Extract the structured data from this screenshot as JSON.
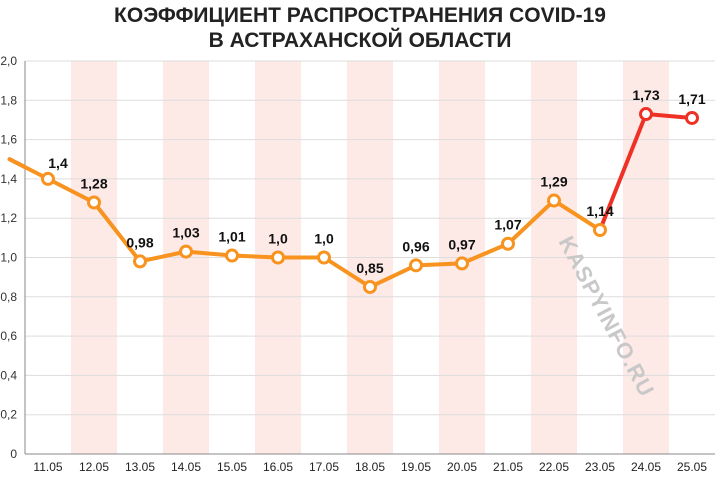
{
  "chart_data": {
    "type": "line",
    "title_lines": [
      "КОЭФФИЦИЕНТ РАСПРОСТРАНЕНИЯ COVID-19",
      "В АСТРАХАНСКОЙ ОБЛАСТИ"
    ],
    "categories": [
      "11.05",
      "12.05",
      "13.05",
      "14.05",
      "15.05",
      "16.05",
      "17.05",
      "18.05",
      "19.05",
      "20.05",
      "21.05",
      "22.05",
      "23.05",
      "24.05",
      "25.05"
    ],
    "values": [
      1.4,
      1.28,
      0.98,
      1.03,
      1.01,
      1.0,
      1.0,
      0.85,
      0.96,
      0.97,
      1.07,
      1.29,
      1.14,
      1.73,
      1.71
    ],
    "value_labels": [
      "1,4",
      "1,28",
      "0,98",
      "1,03",
      "1,01",
      "1,0",
      "1,0",
      "0,85",
      "0,96",
      "0,97",
      "1,07",
      "1,29",
      "1,14",
      "1,73",
      "1,71"
    ],
    "y_ticks": [
      "0",
      "0,2",
      "0,4",
      "0,6",
      "0,8",
      "1,0",
      "1,2",
      "1,4",
      "1,6",
      "1,8",
      "2,0"
    ],
    "ylim": [
      0,
      2.0
    ],
    "y_step": 0.2,
    "grid": true,
    "highlight_threshold": 1.5,
    "colors": {
      "line_normal": "#f7931e",
      "line_high": "#ee3124",
      "marker_fill": "#ffffff",
      "band_light": "#fde9e6",
      "band_white": "#ffffff",
      "grid": "#dddddd",
      "axis": "#888888"
    },
    "watermark": "KASPYINFO.RU"
  }
}
